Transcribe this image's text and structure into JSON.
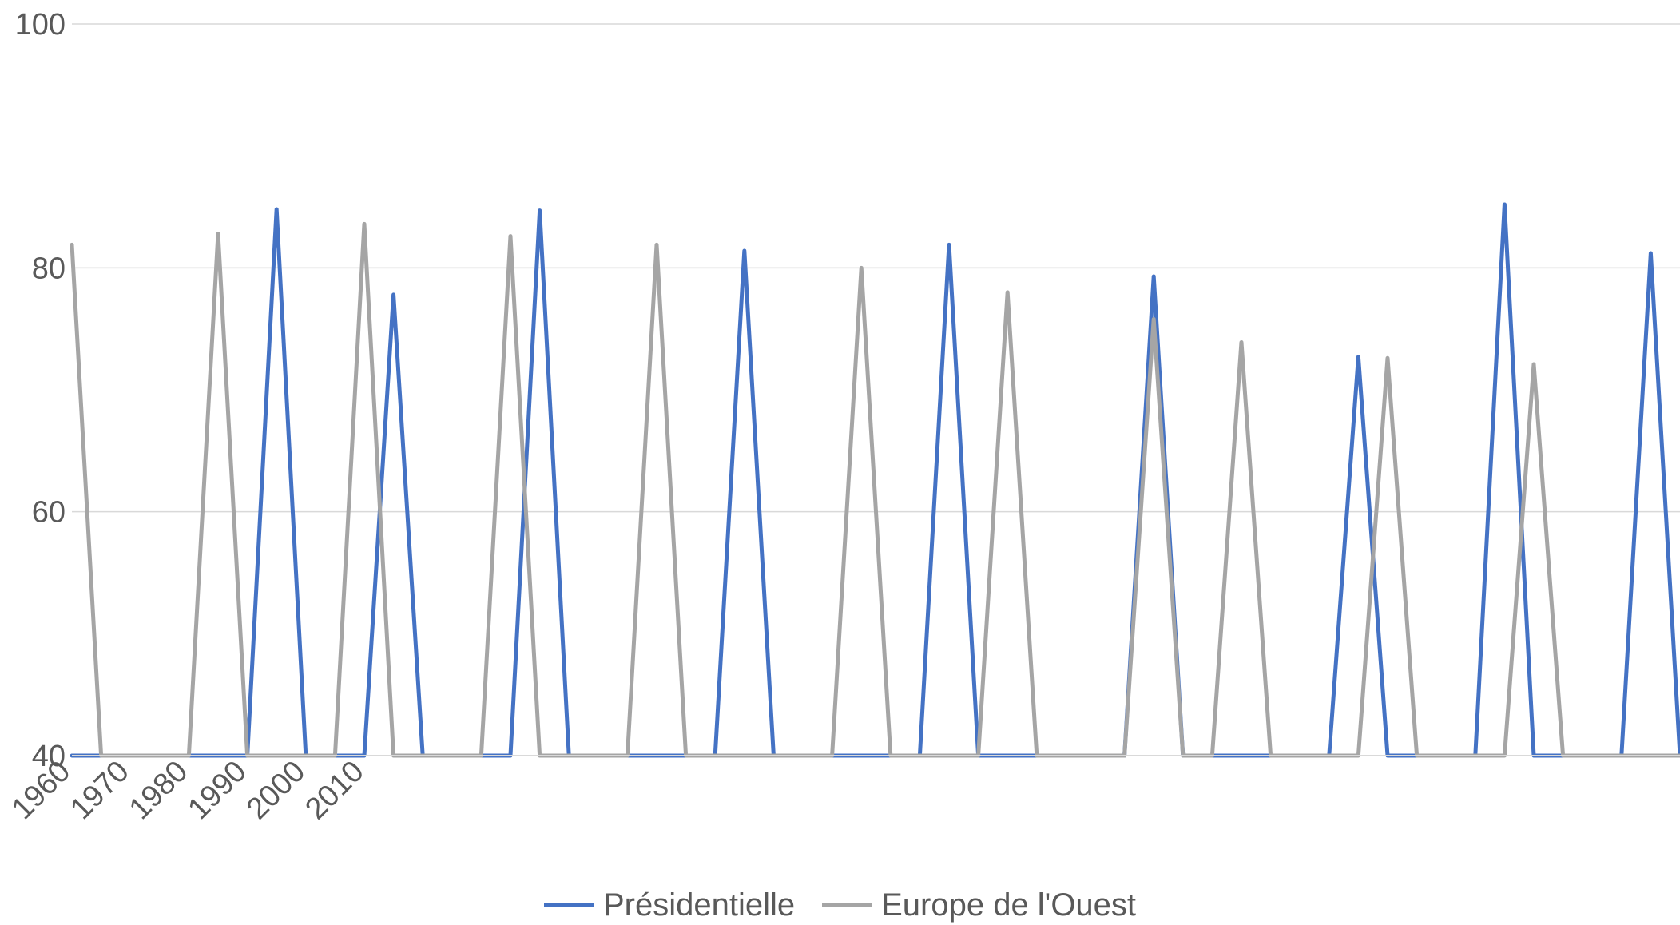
{
  "chart_data": {
    "type": "line",
    "title": "",
    "xlabel": "",
    "ylabel": "",
    "ylim": [
      40,
      100
    ],
    "y_ticks": [
      "40",
      "60",
      "80",
      "100"
    ],
    "x_tick_labels": [
      "1960",
      "1970",
      "1980",
      "1990",
      "2000",
      "2010"
    ],
    "grid": true,
    "legend_position": "bottom",
    "x_count": 56,
    "series": [
      {
        "name": "Présidentielle",
        "color": "#4472C4",
        "points": [
          [
            7,
            84.8
          ],
          [
            11,
            77.8
          ],
          [
            16,
            84.7
          ],
          [
            23,
            81.4
          ],
          [
            30,
            81.9
          ],
          [
            37,
            79.3
          ],
          [
            44,
            72.7
          ],
          [
            49,
            85.2
          ],
          [
            54,
            81.2
          ]
        ]
      },
      {
        "name": "Europe de l'Ouest",
        "color": "#A5A5A5",
        "points": [
          [
            0,
            81.9
          ],
          [
            5,
            82.8
          ],
          [
            10,
            83.6
          ],
          [
            15,
            82.6
          ],
          [
            20,
            81.9
          ],
          [
            27,
            80.0
          ],
          [
            32,
            78.0
          ],
          [
            37,
            75.8
          ],
          [
            40,
            73.9
          ],
          [
            45,
            72.6
          ],
          [
            50,
            72.1
          ]
        ]
      }
    ]
  }
}
